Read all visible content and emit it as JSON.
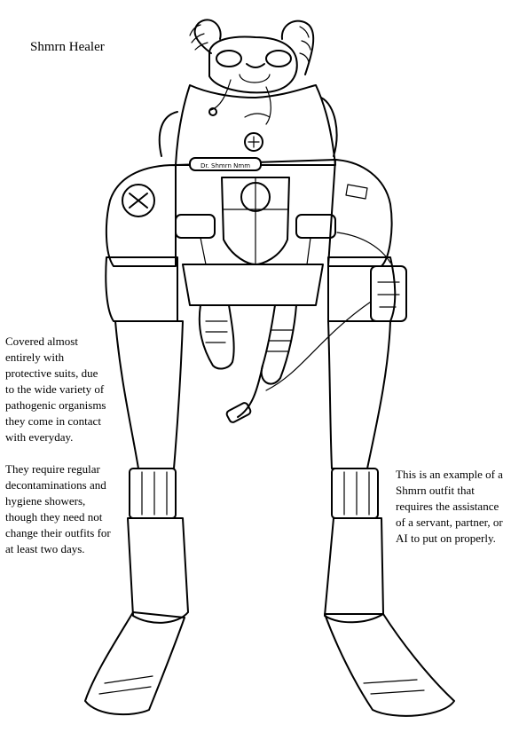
{
  "title": "Shmrn Healer",
  "left_notes": {
    "paragraph_1": [
      "Covered almost",
      "entirely with",
      "protective suits, due",
      "to the wide variety of",
      "pathogenic organisms",
      "they come in contact",
      "with everyday."
    ],
    "paragraph_2": [
      "They require regular",
      "decontaminations and",
      "hygiene showers,",
      "though they need not",
      "change their outfits for",
      "at least two days."
    ]
  },
  "right_note": [
    "This is an example of a",
    "Shmrn outfit that",
    "requires the assistance",
    "of a servant, partner, or",
    "AI to put on properly."
  ],
  "figure": {
    "subject": "suited-figure-drawing",
    "badge_text": "Dr. Shmrn Nmm",
    "ink_color": "#000000",
    "paper_color": "#ffffff"
  }
}
